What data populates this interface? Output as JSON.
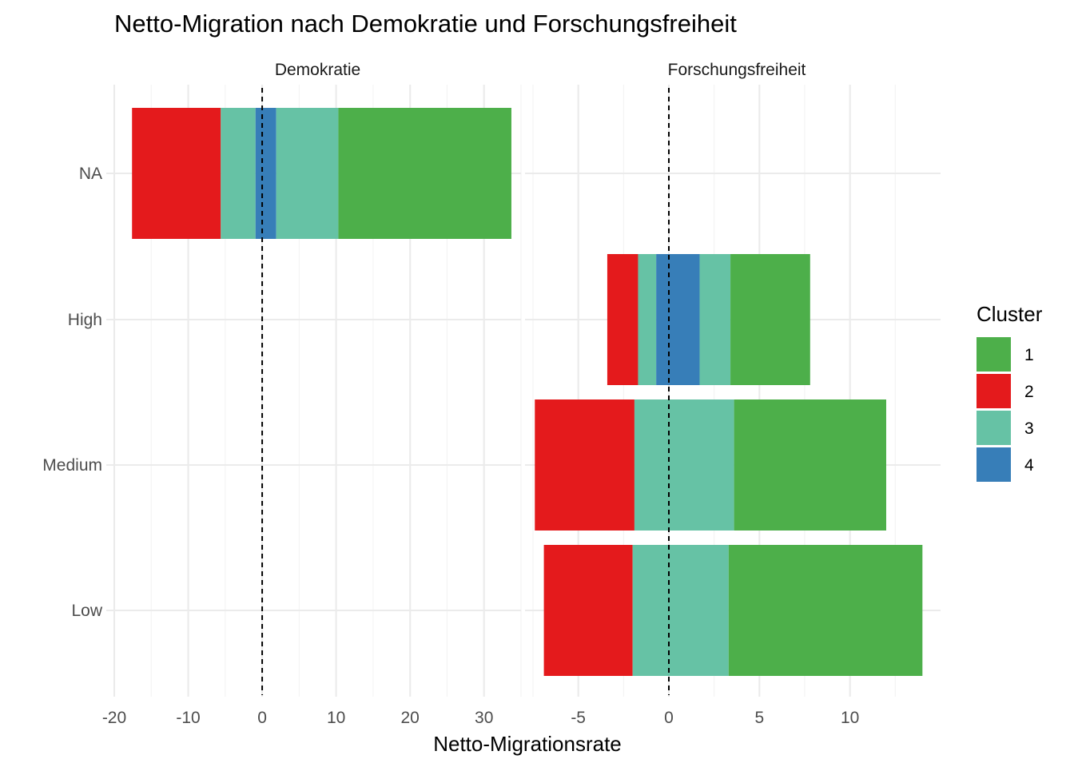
{
  "chart_data": {
    "type": "bar",
    "orientation": "horizontal",
    "stacked": "diverging",
    "title": "Netto-Migration nach Demokratie und Forschungsfreiheit",
    "xlabel": "Netto-Migrationsrate",
    "ylabel": "",
    "categories": [
      "NA",
      "High",
      "Medium",
      "Low"
    ],
    "reference_line": {
      "x": 0,
      "style": "dashed"
    },
    "grid": true,
    "panels": [
      {
        "name": "Demokratie",
        "xlim": [
          -20,
          35
        ],
        "xticks": [
          -20,
          -10,
          0,
          10,
          20,
          30
        ],
        "xtick_labels": [
          "-20",
          "-10",
          "0",
          "10",
          "20",
          "30"
        ],
        "bars": [
          {
            "category": "NA",
            "segments": [
              {
                "cluster": "2",
                "from": -17.6,
                "to": -5.6
              },
              {
                "cluster": "3",
                "from": -5.6,
                "to": -0.9
              },
              {
                "cluster": "4",
                "from": -0.9,
                "to": 1.9
              },
              {
                "cluster": "3",
                "from": 1.9,
                "to": 10.3
              },
              {
                "cluster": "1",
                "from": 10.3,
                "to": 33.7
              }
            ]
          }
        ]
      },
      {
        "name": "Forschungsfreiheit",
        "xlim": [
          -7.5,
          15
        ],
        "xticks": [
          -5,
          0,
          5,
          10
        ],
        "xtick_labels": [
          "-5",
          "0",
          "5",
          "10"
        ],
        "bars": [
          {
            "category": "High",
            "segments": [
              {
                "cluster": "2",
                "from": -3.4,
                "to": -1.7
              },
              {
                "cluster": "3",
                "from": -1.7,
                "to": -0.7
              },
              {
                "cluster": "4",
                "from": -0.7,
                "to": 1.7
              },
              {
                "cluster": "3",
                "from": 1.7,
                "to": 3.4
              },
              {
                "cluster": "1",
                "from": 3.4,
                "to": 7.8
              }
            ]
          },
          {
            "category": "Medium",
            "segments": [
              {
                "cluster": "2",
                "from": -7.4,
                "to": -1.9
              },
              {
                "cluster": "3",
                "from": -1.9,
                "to": 3.6
              },
              {
                "cluster": "1",
                "from": 3.6,
                "to": 12.0
              }
            ]
          },
          {
            "category": "Low",
            "segments": [
              {
                "cluster": "2",
                "from": -6.9,
                "to": -2.0
              },
              {
                "cluster": "3",
                "from": -2.0,
                "to": 3.3
              },
              {
                "cluster": "1",
                "from": 3.3,
                "to": 14.0
              }
            ]
          }
        ]
      }
    ],
    "legend": {
      "title": "Cluster",
      "position": "right",
      "items": [
        {
          "label": "1",
          "color": "#4daf4a"
        },
        {
          "label": "2",
          "color": "#e41a1c"
        },
        {
          "label": "3",
          "color": "#66c2a5"
        },
        {
          "label": "4",
          "color": "#377eb8"
        }
      ]
    }
  }
}
